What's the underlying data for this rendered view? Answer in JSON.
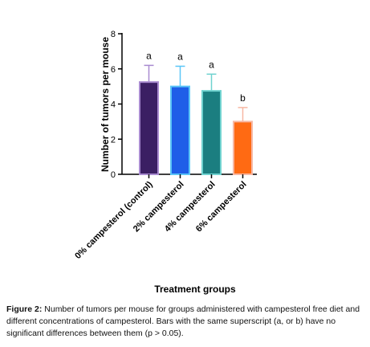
{
  "chart_data": {
    "type": "bar",
    "categories": [
      "0% campesterol (control)",
      "2% campesterol",
      "4% campesterol",
      "6% campesterol"
    ],
    "values": [
      5.25,
      5.0,
      4.75,
      3.0
    ],
    "error_upper": [
      6.2,
      6.15,
      5.7,
      3.8
    ],
    "superscripts": [
      "a",
      "a",
      "a",
      "b"
    ],
    "colors": {
      "fill": [
        "#3b1f63",
        "#1f5ee8",
        "#1b7e80",
        "#ff6a13"
      ],
      "edge": [
        "#a98bd0",
        "#5bc6f7",
        "#6fd2cf",
        "#f7b7a3"
      ]
    },
    "ylim": [
      0,
      8
    ],
    "yticks": [
      "0",
      "2",
      "4",
      "6",
      "8"
    ],
    "ylabel": "Number of tumors per mouse",
    "xlabel": "Treatment groups",
    "grid": false
  },
  "caption": {
    "label": "Figure 2:",
    "text": "Number of tumors per mouse for groups administered with campesterol free diet and different concentrations of campesterol. Bars with the same superscript (a, or b) have no significant differences between them (p > 0.05)."
  }
}
